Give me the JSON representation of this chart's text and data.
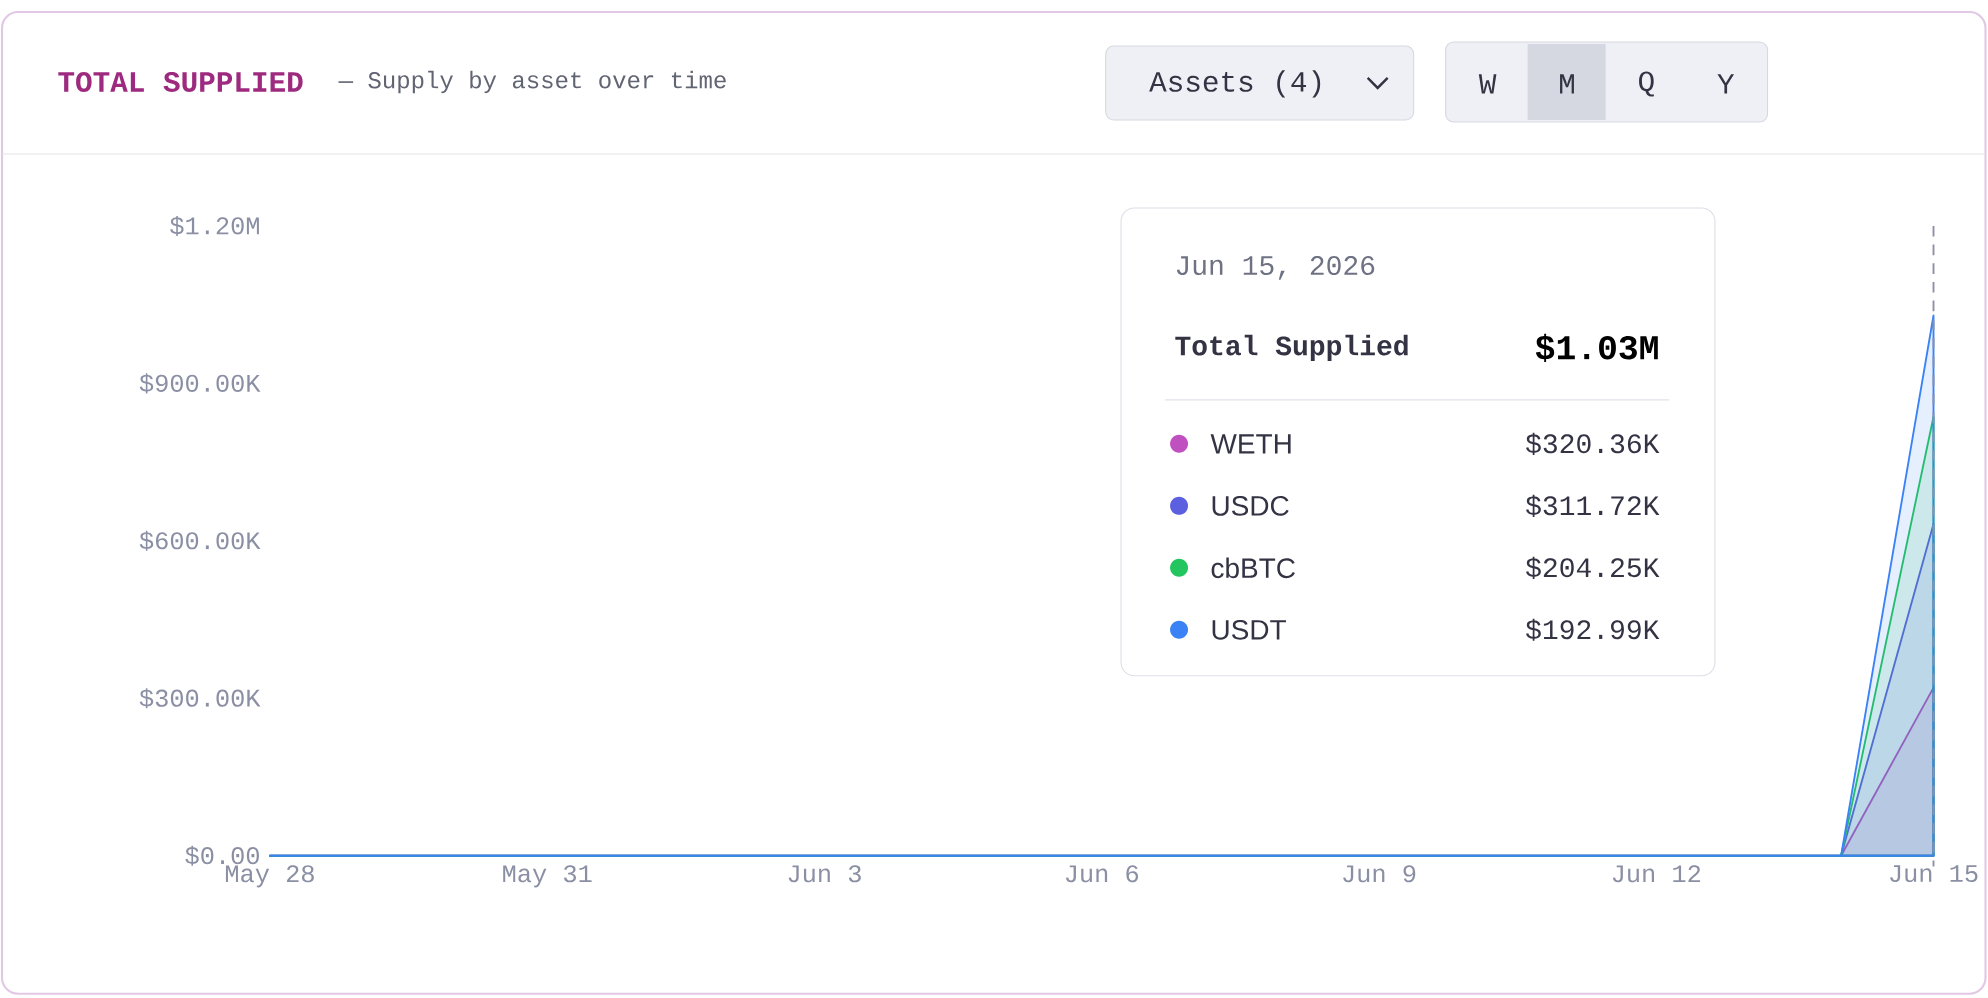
{
  "chart_data": {
    "type": "area",
    "title": "TOTAL SUPPLIED",
    "subtitle": "— Supply by asset over time",
    "stacked": true,
    "legend": "top",
    "grid": false,
    "x": [
      "2026-05-28",
      "2026-05-29",
      "2026-05-30",
      "2026-05-31",
      "2026-06-01",
      "2026-06-02",
      "2026-06-03",
      "2026-06-04",
      "2026-06-05",
      "2026-06-06",
      "2026-06-07",
      "2026-06-08",
      "2026-06-09",
      "2026-06-10",
      "2026-06-11",
      "2026-06-12",
      "2026-06-13",
      "2026-06-14",
      "2026-06-15"
    ],
    "xlim": [
      "2026-05-28",
      "2026-06-15"
    ],
    "xticks": [
      {
        "value": "2026-05-28",
        "label": "May 28"
      },
      {
        "value": "2026-05-31",
        "label": "May 31"
      },
      {
        "value": "2026-06-03",
        "label": "Jun 3"
      },
      {
        "value": "2026-06-06",
        "label": "Jun 6"
      },
      {
        "value": "2026-06-09",
        "label": "Jun 9"
      },
      {
        "value": "2026-06-12",
        "label": "Jun 12"
      },
      {
        "value": "2026-06-15",
        "label": "Jun 15"
      }
    ],
    "ylim": [
      0,
      1200000
    ],
    "yticks": [
      {
        "value": 0,
        "label": "$0.00"
      },
      {
        "value": 300000,
        "label": "$300.00K"
      },
      {
        "value": 600000,
        "label": "$600.00K"
      },
      {
        "value": 900000,
        "label": "$900.00K"
      },
      {
        "value": 1200000,
        "label": "$1.20M"
      }
    ],
    "series": [
      {
        "name": "WETH",
        "color": "#c04fc0",
        "values": [
          0,
          0,
          0,
          0,
          0,
          0,
          0,
          0,
          0,
          0,
          0,
          0,
          0,
          0,
          0,
          0,
          0,
          0,
          320360
        ]
      },
      {
        "name": "USDC",
        "color": "#5b5fe0",
        "values": [
          0,
          0,
          0,
          0,
          0,
          0,
          0,
          0,
          0,
          0,
          0,
          0,
          0,
          0,
          0,
          0,
          0,
          0,
          311720
        ]
      },
      {
        "name": "cbBTC",
        "color": "#22c55e",
        "values": [
          0,
          0,
          0,
          0,
          0,
          0,
          0,
          0,
          0,
          0,
          0,
          0,
          0,
          0,
          0,
          0,
          0,
          0,
          204250
        ]
      },
      {
        "name": "USDT",
        "color": "#3b82f6",
        "values": [
          0,
          0,
          0,
          0,
          0,
          0,
          0,
          0,
          0,
          0,
          0,
          0,
          0,
          0,
          0,
          0,
          0,
          0,
          192990
        ]
      }
    ],
    "ref_lines": [
      {
        "axis": "x",
        "value": "2026-06-15",
        "color": "#8e8ea8",
        "line_style": "dashed"
      }
    ],
    "annotations": [
      "Jun 15, 2026",
      "Total Supplied",
      "$1.03M",
      "Assets (4)",
      "W",
      "M",
      "Q",
      "Y",
      "$320.36K",
      "$311.72K",
      "$204.25K",
      "$192.99K"
    ]
  }
}
